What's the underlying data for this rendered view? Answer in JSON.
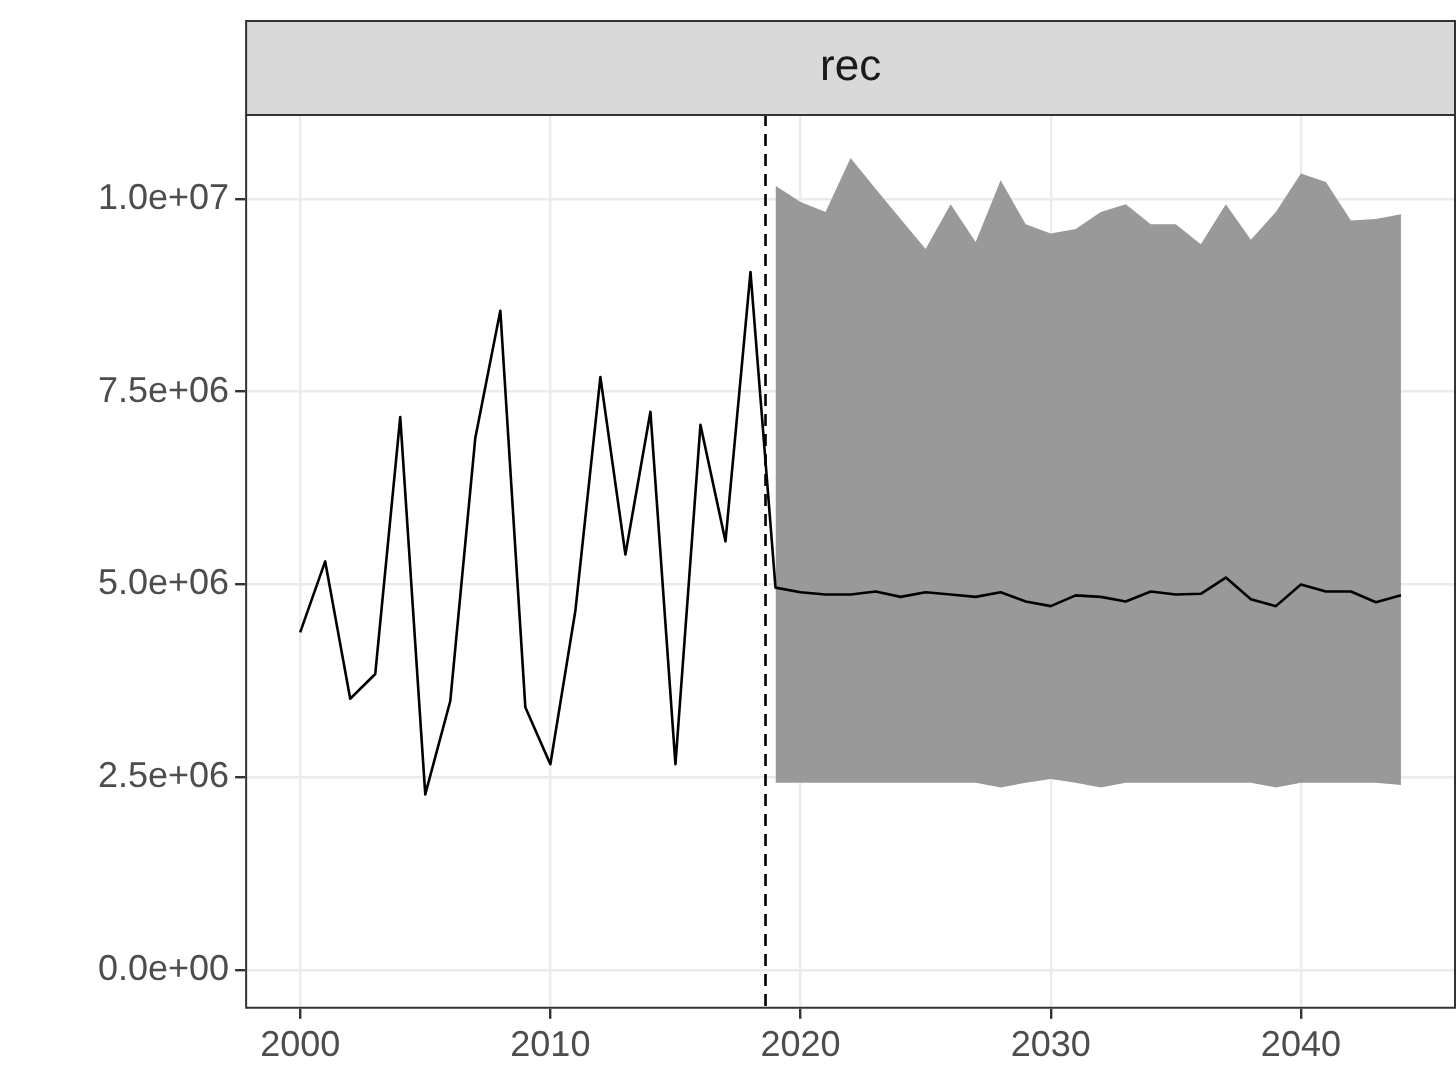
{
  "chart_data": {
    "type": "line",
    "title": "rec",
    "x": [
      2000,
      2001,
      2002,
      2003,
      2004,
      2005,
      2006,
      2007,
      2008,
      2009,
      2010,
      2011,
      2012,
      2013,
      2014,
      2015,
      2016,
      2017,
      2018,
      2019,
      2020,
      2021,
      2022,
      2023,
      2024,
      2025,
      2026,
      2027,
      2028,
      2029,
      2030,
      2031,
      2032,
      2033,
      2034,
      2035,
      2036,
      2037,
      2038,
      2039,
      2040,
      2041,
      2042,
      2043,
      2044
    ],
    "series": [
      {
        "color": "#000000",
        "values": [
          4380000,
          5300000,
          3520000,
          3840000,
          7170000,
          2280000,
          3490000,
          6900000,
          8550000,
          3410000,
          2670000,
          4660000,
          7690000,
          5390000,
          7240000,
          2670000,
          7070000,
          5560000,
          9050000,
          4960000,
          4900000,
          4870000,
          4870000,
          4910000,
          4840000,
          4900000,
          4870000,
          4840000,
          4900000,
          4780000,
          4720000,
          4860000,
          4840000,
          4780000,
          4910000,
          4870000,
          4880000,
          5090000,
          4810000,
          4720000,
          5000000,
          4910000,
          4910000,
          4770000,
          4860000
        ],
        "lower": [
          null,
          null,
          null,
          null,
          null,
          null,
          null,
          null,
          null,
          null,
          null,
          null,
          null,
          null,
          null,
          null,
          null,
          null,
          null,
          2430000,
          2430000,
          2430000,
          2430000,
          2430000,
          2430000,
          2430000,
          2430000,
          2430000,
          2370000,
          2430000,
          2480000,
          2430000,
          2370000,
          2430000,
          2430000,
          2430000,
          2430000,
          2430000,
          2430000,
          2370000,
          2430000,
          2430000,
          2430000,
          2430000,
          2400000
        ],
        "upper": [
          null,
          null,
          null,
          null,
          null,
          null,
          null,
          null,
          null,
          null,
          null,
          null,
          null,
          null,
          null,
          null,
          null,
          null,
          null,
          10170000,
          9960000,
          9830000,
          10530000,
          10130000,
          9740000,
          9350000,
          9930000,
          9440000,
          10240000,
          9670000,
          9550000,
          9610000,
          9830000,
          9930000,
          9670000,
          9670000,
          9410000,
          9930000,
          9470000,
          9830000,
          10330000,
          10220000,
          9720000,
          9740000,
          9800000
        ]
      }
    ],
    "xlim": [
      1997.8,
      2046.2
    ],
    "xticks": [
      2000,
      2010,
      2020,
      2030,
      2040
    ],
    "ylim": [
      -500000,
      11100000
    ],
    "yticks": [
      {
        "value": 0,
        "label": "0.0e+00"
      },
      {
        "value": 2500000,
        "label": "2.5e+06"
      },
      {
        "value": 5000000,
        "label": "5.0e+06"
      },
      {
        "value": 7500000,
        "label": "7.5e+06"
      },
      {
        "value": 10000000,
        "label": "1.0e+07"
      }
    ],
    "grid": true,
    "marker": "none",
    "line_style": "solid",
    "ref_lines": [
      {
        "axis": "x",
        "value": 2018.6,
        "color": "#000000",
        "line_style": "dashed"
      }
    ]
  }
}
